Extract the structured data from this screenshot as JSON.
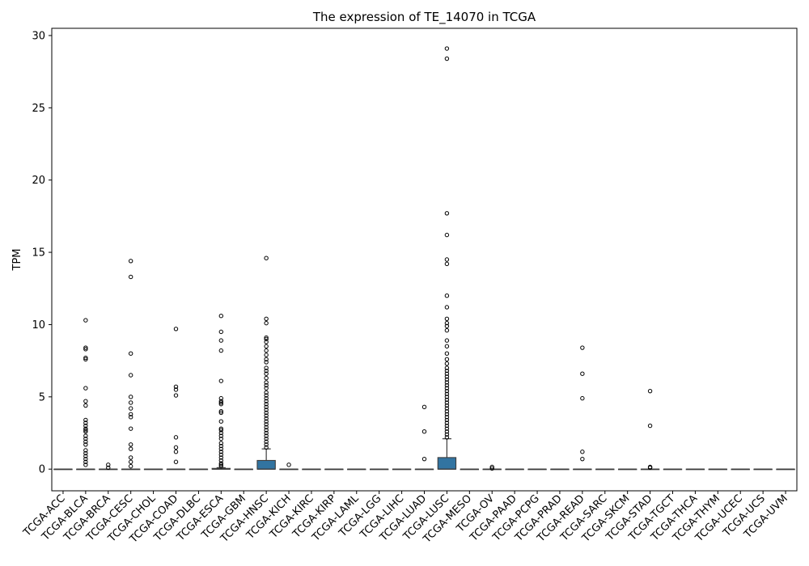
{
  "chart_data": {
    "type": "box",
    "title": "The expression of TE_14070 in TCGA",
    "xlabel": "",
    "ylabel": "TPM",
    "ylim": [
      -1.5,
      30.5
    ],
    "yticks": [
      0,
      5,
      10,
      15,
      20,
      25,
      30
    ],
    "grid": false,
    "colors": {
      "box": "#3274a1",
      "outline": "#3d3d3d",
      "flier": "#000000"
    },
    "categories": [
      "TCGA-ACC",
      "TCGA-BLCA",
      "TCGA-BRCA",
      "TCGA-CESC",
      "TCGA-CHOL",
      "TCGA-COAD",
      "TCGA-DLBC",
      "TCGA-ESCA",
      "TCGA-GBM",
      "TCGA-HNSC",
      "TCGA-KICH",
      "TCGA-KIRC",
      "TCGA-KIRP",
      "TCGA-LAML",
      "TCGA-LGG",
      "TCGA-LIHC",
      "TCGA-LUAD",
      "TCGA-LUSC",
      "TCGA-MESO",
      "TCGA-OV",
      "TCGA-PAAD",
      "TCGA-PCPG",
      "TCGA-PRAD",
      "TCGA-READ",
      "TCGA-SARC",
      "TCGA-SKCM",
      "TCGA-STAD",
      "TCGA-TGCT",
      "TCGA-THCA",
      "TCGA-THYM",
      "TCGA-UCEC",
      "TCGA-UCS",
      "TCGA-UVM"
    ],
    "boxes": [
      {
        "q1": 0,
        "median": 0,
        "q3": 0,
        "whisker_low": 0,
        "whisker_high": 0,
        "outliers": []
      },
      {
        "q1": 0,
        "median": 0,
        "q3": 0,
        "whisker_low": 0,
        "whisker_high": 0,
        "outliers": [
          10.3,
          8.4,
          8.3,
          7.7,
          7.6,
          5.6,
          4.7,
          4.4,
          3.4,
          3.2,
          3.0,
          2.8,
          2.7,
          2.6,
          2.3,
          2.1,
          1.9,
          1.7,
          1.3,
          1.1,
          0.9,
          0.7,
          0.5,
          0.3
        ]
      },
      {
        "q1": 0,
        "median": 0,
        "q3": 0,
        "whisker_low": 0,
        "whisker_high": 0,
        "outliers": [
          0.3,
          0.1
        ]
      },
      {
        "q1": 0,
        "median": 0,
        "q3": 0,
        "whisker_low": 0,
        "whisker_high": 0,
        "outliers": [
          14.4,
          13.3,
          8.0,
          6.5,
          5.0,
          4.6,
          4.2,
          3.8,
          3.6,
          2.8,
          1.7,
          1.4,
          0.8,
          0.5,
          0.2
        ]
      },
      {
        "q1": 0,
        "median": 0,
        "q3": 0,
        "whisker_low": 0,
        "whisker_high": 0,
        "outliers": []
      },
      {
        "q1": 0,
        "median": 0,
        "q3": 0,
        "whisker_low": 0,
        "whisker_high": 0,
        "outliers": [
          9.7,
          5.7,
          5.5,
          5.1,
          2.2,
          1.5,
          1.2,
          0.5
        ]
      },
      {
        "q1": 0,
        "median": 0,
        "q3": 0,
        "whisker_low": 0,
        "whisker_high": 0,
        "outliers": []
      },
      {
        "q1": 0,
        "median": 0,
        "q3": 0.05,
        "whisker_low": 0,
        "whisker_high": 0.1,
        "outliers": [
          10.6,
          9.5,
          8.9,
          8.2,
          6.1,
          4.9,
          4.7,
          4.6,
          4.5,
          4.0,
          3.9,
          3.3,
          2.8,
          2.7,
          2.5,
          2.3,
          2.1,
          1.8,
          1.6,
          1.4,
          1.2,
          1.0,
          0.8,
          0.6,
          0.4,
          0.3,
          0.2
        ]
      },
      {
        "q1": 0,
        "median": 0,
        "q3": 0,
        "whisker_low": 0,
        "whisker_high": 0,
        "outliers": []
      },
      {
        "q1": 0,
        "median": 0,
        "q3": 0.6,
        "whisker_low": 0,
        "whisker_high": 1.4,
        "outliers": [
          14.6,
          10.4,
          10.1,
          9.1,
          9.0,
          8.8,
          8.5,
          8.2,
          7.9,
          7.6,
          7.4,
          7.0,
          6.8,
          6.6,
          6.3,
          6.0,
          5.8,
          5.6,
          5.3,
          5.1,
          4.9,
          4.7,
          4.5,
          4.3,
          4.1,
          3.9,
          3.7,
          3.5,
          3.3,
          3.1,
          2.9,
          2.7,
          2.5,
          2.3,
          2.1,
          1.9,
          1.7,
          1.5
        ]
      },
      {
        "q1": 0,
        "median": 0,
        "q3": 0,
        "whisker_low": 0,
        "whisker_high": 0,
        "outliers": [
          0.3
        ]
      },
      {
        "q1": 0,
        "median": 0,
        "q3": 0,
        "whisker_low": 0,
        "whisker_high": 0,
        "outliers": []
      },
      {
        "q1": 0,
        "median": 0,
        "q3": 0,
        "whisker_low": 0,
        "whisker_high": 0,
        "outliers": []
      },
      {
        "q1": 0,
        "median": 0,
        "q3": 0,
        "whisker_low": 0,
        "whisker_high": 0,
        "outliers": []
      },
      {
        "q1": 0,
        "median": 0,
        "q3": 0,
        "whisker_low": 0,
        "whisker_high": 0,
        "outliers": []
      },
      {
        "q1": 0,
        "median": 0,
        "q3": 0,
        "whisker_low": 0,
        "whisker_high": 0,
        "outliers": []
      },
      {
        "q1": 0,
        "median": 0,
        "q3": 0,
        "whisker_low": 0,
        "whisker_high": 0,
        "outliers": [
          4.3,
          2.6,
          0.7
        ]
      },
      {
        "q1": 0,
        "median": 0,
        "q3": 0.8,
        "whisker_low": 0,
        "whisker_high": 2.1,
        "outliers": [
          29.1,
          28.4,
          17.7,
          16.2,
          14.5,
          14.2,
          12.0,
          11.2,
          10.4,
          10.1,
          9.9,
          9.6,
          8.9,
          8.5,
          8.0,
          7.6,
          7.3,
          7.0,
          6.8,
          6.6,
          6.4,
          6.2,
          6.0,
          5.8,
          5.6,
          5.4,
          5.2,
          5.0,
          4.8,
          4.6,
          4.4,
          4.2,
          4.0,
          3.8,
          3.6,
          3.4,
          3.2,
          3.0,
          2.8,
          2.6,
          2.4,
          2.2
        ]
      },
      {
        "q1": 0,
        "median": 0,
        "q3": 0,
        "whisker_low": 0,
        "whisker_high": 0,
        "outliers": []
      },
      {
        "q1": 0,
        "median": 0,
        "q3": 0,
        "whisker_low": 0,
        "whisker_high": 0,
        "outliers": [
          0.15,
          0.05
        ]
      },
      {
        "q1": 0,
        "median": 0,
        "q3": 0,
        "whisker_low": 0,
        "whisker_high": 0,
        "outliers": []
      },
      {
        "q1": 0,
        "median": 0,
        "q3": 0,
        "whisker_low": 0,
        "whisker_high": 0,
        "outliers": []
      },
      {
        "q1": 0,
        "median": 0,
        "q3": 0,
        "whisker_low": 0,
        "whisker_high": 0,
        "outliers": []
      },
      {
        "q1": 0,
        "median": 0,
        "q3": 0,
        "whisker_low": 0,
        "whisker_high": 0,
        "outliers": [
          8.4,
          6.6,
          4.9,
          1.2,
          0.7
        ]
      },
      {
        "q1": 0,
        "median": 0,
        "q3": 0,
        "whisker_low": 0,
        "whisker_high": 0,
        "outliers": []
      },
      {
        "q1": 0,
        "median": 0,
        "q3": 0,
        "whisker_low": 0,
        "whisker_high": 0,
        "outliers": []
      },
      {
        "q1": 0,
        "median": 0,
        "q3": 0,
        "whisker_low": 0,
        "whisker_high": 0,
        "outliers": [
          5.4,
          3.0,
          0.15,
          0.1
        ]
      },
      {
        "q1": 0,
        "median": 0,
        "q3": 0,
        "whisker_low": 0,
        "whisker_high": 0,
        "outliers": []
      },
      {
        "q1": 0,
        "median": 0,
        "q3": 0,
        "whisker_low": 0,
        "whisker_high": 0,
        "outliers": []
      },
      {
        "q1": 0,
        "median": 0,
        "q3": 0,
        "whisker_low": 0,
        "whisker_high": 0,
        "outliers": []
      },
      {
        "q1": 0,
        "median": 0,
        "q3": 0,
        "whisker_low": 0,
        "whisker_high": 0,
        "outliers": []
      },
      {
        "q1": 0,
        "median": 0,
        "q3": 0,
        "whisker_low": 0,
        "whisker_high": 0,
        "outliers": []
      },
      {
        "q1": 0,
        "median": 0,
        "q3": 0,
        "whisker_low": 0,
        "whisker_high": 0,
        "outliers": []
      }
    ]
  }
}
